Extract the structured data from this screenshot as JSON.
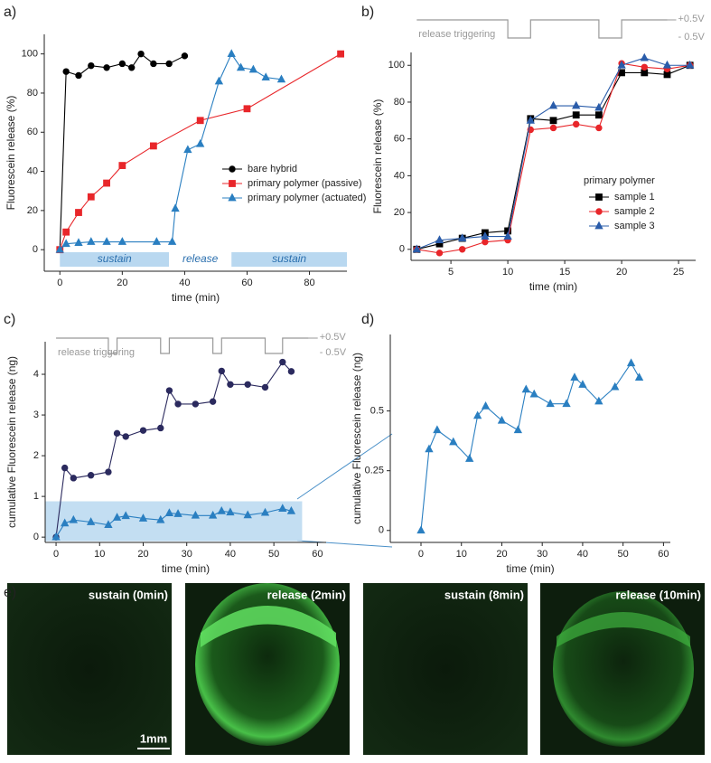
{
  "panel_labels": [
    "a)",
    "b)",
    "c)",
    "d)",
    "e)"
  ],
  "chart_data": [
    {
      "type": "line",
      "xlabel": "time (min)",
      "ylabel": "Fluorescein release (%)",
      "xlim": [
        -5,
        92
      ],
      "ylim": [
        -11,
        110
      ],
      "xticks": [
        0,
        20,
        40,
        60,
        80
      ],
      "yticks": [
        0,
        20,
        40,
        60,
        80,
        100
      ],
      "grid": false,
      "legend": "center right",
      "series": [
        {
          "name": "bare hybrid",
          "color": "#000000",
          "marker": "circle",
          "x": [
            0,
            2,
            6,
            10,
            15,
            20,
            23,
            26,
            30,
            35,
            40
          ],
          "values": [
            0,
            91,
            89,
            94,
            93,
            95,
            93,
            100,
            95,
            95,
            99
          ]
        },
        {
          "name": "primary polymer (passive)",
          "color": "#e8262a",
          "marker": "square",
          "x": [
            0,
            2,
            6,
            10,
            15,
            20,
            30,
            45,
            60,
            90
          ],
          "values": [
            0,
            9,
            19,
            27,
            34,
            43,
            53,
            66,
            72,
            100
          ]
        },
        {
          "name": "primary polymer (actuated)",
          "color": "#2a7fc1",
          "marker": "triangle",
          "x": [
            0,
            2,
            6,
            10,
            15,
            20,
            31,
            36,
            37,
            41,
            45,
            51,
            55,
            58,
            62,
            66,
            71
          ],
          "values": [
            0,
            3,
            3.5,
            4,
            4,
            4,
            4,
            4,
            21,
            51,
            54,
            86,
            100,
            93,
            92,
            88,
            87
          ]
        }
      ],
      "bands": [
        {
          "label": "sustain",
          "from": 0,
          "to": 35,
          "color": "#b9d8f0"
        },
        {
          "label": "release",
          "from": 35,
          "to": 55,
          "color": "#ffffff"
        },
        {
          "label": "sustain",
          "from": 55,
          "to": 92,
          "color": "#b9d8f0"
        }
      ]
    },
    {
      "type": "line",
      "xlabel": "time (min)",
      "ylabel": "Fluorescein release (%)",
      "xlim": [
        1.5,
        26.5
      ],
      "ylim": [
        -6,
        107
      ],
      "xticks": [
        5,
        10,
        15,
        20,
        25
      ],
      "yticks": [
        0,
        20,
        40,
        60,
        80,
        100
      ],
      "grid": false,
      "legend": "lower right",
      "legend_title": "primary polymer",
      "x": [
        2,
        4,
        6,
        8,
        10,
        12,
        14,
        16,
        18,
        20,
        22,
        24,
        26
      ],
      "series": [
        {
          "name": "sample 1",
          "color": "#000000",
          "marker": "square",
          "values": [
            0,
            3,
            6,
            9,
            10,
            71,
            70,
            73,
            73,
            96,
            96,
            95,
            100
          ]
        },
        {
          "name": "sample 2",
          "color": "#e8262a",
          "marker": "circle",
          "values": [
            0,
            -2,
            0,
            4,
            5,
            65,
            66,
            68,
            66,
            101,
            99,
            98,
            100
          ]
        },
        {
          "name": "sample 3",
          "color": "#2a5caa",
          "marker": "triangle",
          "values": [
            0,
            5,
            6,
            7,
            7,
            70,
            78,
            78,
            77,
            100,
            104,
            100,
            100
          ]
        }
      ],
      "trigger": {
        "label": "release triggering",
        "high_label": "+0.5V",
        "low_label": "- 0.5V",
        "span": [
          2,
          24
        ],
        "windows": [
          [
            10,
            12
          ],
          [
            18,
            20
          ]
        ]
      }
    },
    {
      "type": "line",
      "xlabel": "time (min)",
      "ylabel": "cumulative Fluorescein release (ng)",
      "xlim": [
        -2.5,
        62
      ],
      "ylim": [
        -0.13,
        4.8
      ],
      "xticks": [
        0,
        10,
        20,
        30,
        40,
        50,
        60
      ],
      "yticks": [
        0,
        1,
        2,
        3,
        4
      ],
      "grid": false,
      "x": [
        0,
        2,
        4,
        8,
        12,
        14,
        16,
        20,
        24,
        26,
        28,
        32,
        36,
        38,
        40,
        44,
        48,
        52,
        54
      ],
      "series": [
        {
          "color": "#2b2a5e",
          "marker": "circle",
          "values": [
            0,
            1.7,
            1.45,
            1.52,
            1.6,
            2.55,
            2.47,
            2.62,
            2.68,
            3.6,
            3.27,
            3.27,
            3.33,
            4.08,
            3.75,
            3.75,
            3.68,
            4.3,
            4.07
          ]
        },
        {
          "color": "#2a7fc1",
          "marker": "triangle",
          "values": [
            0,
            0.34,
            0.42,
            0.37,
            0.3,
            0.48,
            0.52,
            0.46,
            0.42,
            0.59,
            0.57,
            0.53,
            0.53,
            0.64,
            0.61,
            0.54,
            0.6,
            0.7,
            0.64
          ]
        }
      ],
      "highlight": {
        "x": [
          0,
          54
        ],
        "y": [
          -0.1,
          0.88
        ],
        "color": "#b9d8f0"
      },
      "trigger": {
        "label": "release triggering",
        "high_label": "+0.5V",
        "low_label": "- 0.5V",
        "span": [
          0,
          58
        ],
        "windows": [
          [
            12,
            14
          ],
          [
            24,
            26
          ],
          [
            36,
            38
          ],
          [
            48,
            52
          ]
        ]
      }
    },
    {
      "type": "line",
      "xlabel": "time (min)",
      "ylabel": "cumulative Fluorescein release (ng)",
      "xlim": [
        -7.6,
        61.7
      ],
      "ylim": [
        -0.05,
        0.82
      ],
      "xticks": [
        0,
        10,
        20,
        30,
        40,
        50,
        60
      ],
      "yticks": [
        0,
        0.25,
        0.5
      ],
      "grid": false,
      "x": [
        0,
        2,
        4,
        8,
        12,
        14,
        16,
        20,
        24,
        26,
        28,
        32,
        36,
        38,
        40,
        44,
        48,
        52,
        54
      ],
      "series": [
        {
          "color": "#2a7fc1",
          "marker": "triangle",
          "values": [
            0,
            0.34,
            0.42,
            0.37,
            0.3,
            0.48,
            0.52,
            0.46,
            0.42,
            0.59,
            0.57,
            0.53,
            0.53,
            0.64,
            0.61,
            0.54,
            0.6,
            0.7,
            0.64
          ]
        }
      ]
    }
  ],
  "micrographs": {
    "labels": [
      "sustain (0min)",
      "release (2min)",
      "sustain (8min)",
      "release (10min)"
    ],
    "scale_bar": "1mm"
  }
}
